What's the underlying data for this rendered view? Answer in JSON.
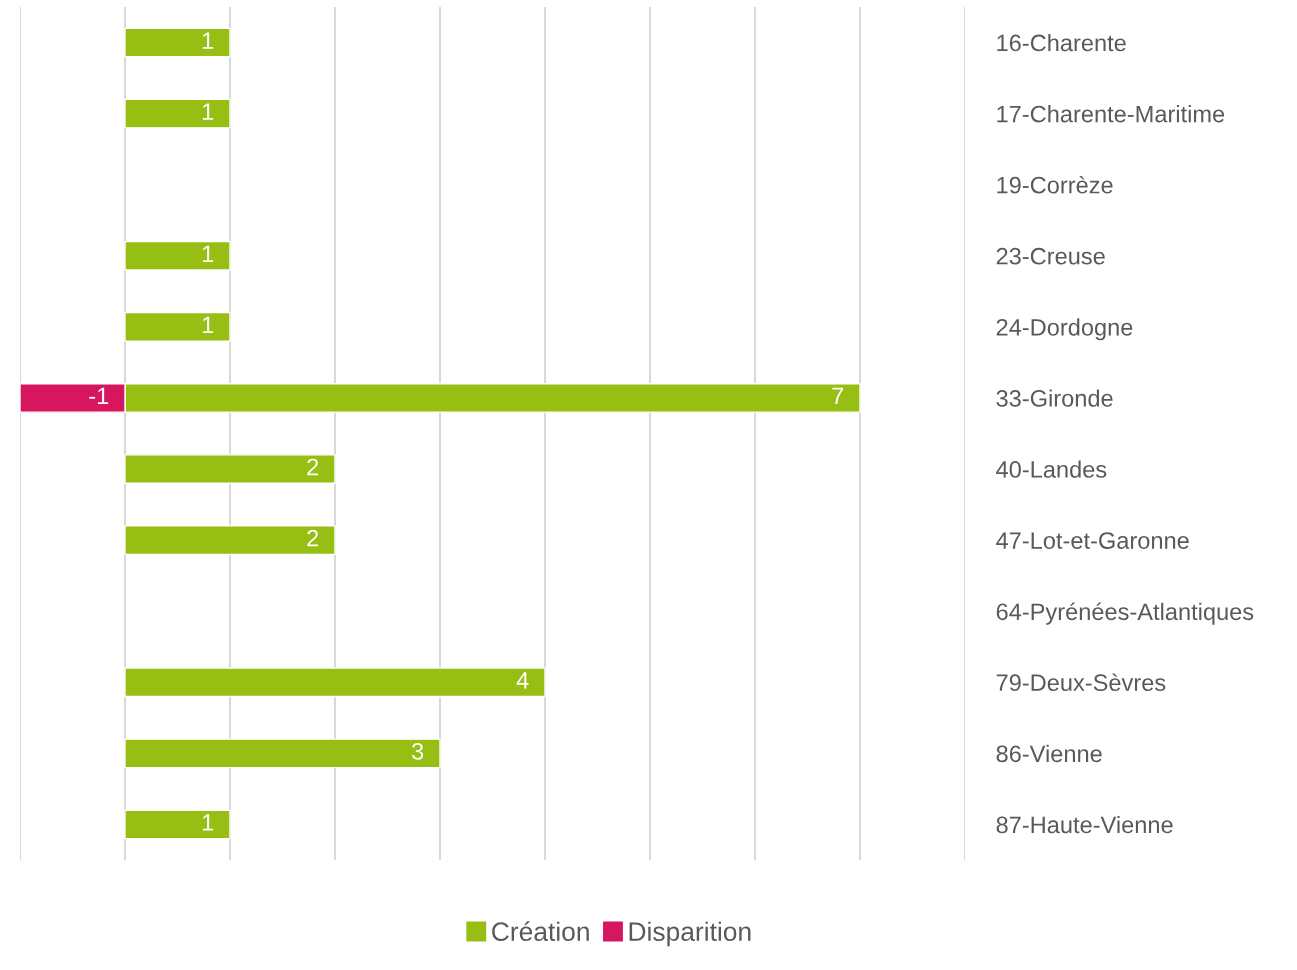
{
  "chart_data": {
    "type": "bar",
    "orientation": "horizontal",
    "stacked": true,
    "categories": [
      "16-Charente",
      "17-Charente-Maritime",
      "19-Corrèze",
      "23-Creuse",
      "24-Dordogne",
      "33-Gironde",
      "40-Landes",
      "47-Lot-et-Garonne",
      "64-Pyrénées-Atlantiques",
      "79-Deux-Sèvres",
      "86-Vienne",
      "87-Haute-Vienne"
    ],
    "series": [
      {
        "name": "Création",
        "color": "#97bf13",
        "values": [
          1,
          1,
          null,
          1,
          1,
          7,
          2,
          2,
          null,
          4,
          3,
          1
        ]
      },
      {
        "name": "Disparition",
        "color": "#d6175f",
        "values": [
          null,
          null,
          null,
          null,
          null,
          -1,
          null,
          null,
          null,
          null,
          null,
          null
        ]
      }
    ],
    "xlim": [
      -1,
      8
    ],
    "xticks": [
      {
        "value": -1,
        "label": null
      },
      {
        "value": 0,
        "label": null
      },
      {
        "value": 1,
        "label": null
      },
      {
        "value": 2,
        "label": null
      },
      {
        "value": 3,
        "label": null
      },
      {
        "value": 4,
        "label": null
      },
      {
        "value": 5,
        "label": null
      },
      {
        "value": 6,
        "label": null
      },
      {
        "value": 7,
        "label": null
      },
      {
        "value": 8,
        "label": null
      }
    ],
    "tick_labels": "y",
    "grid": "x",
    "legend": "bottom",
    "data_labels": true
  }
}
